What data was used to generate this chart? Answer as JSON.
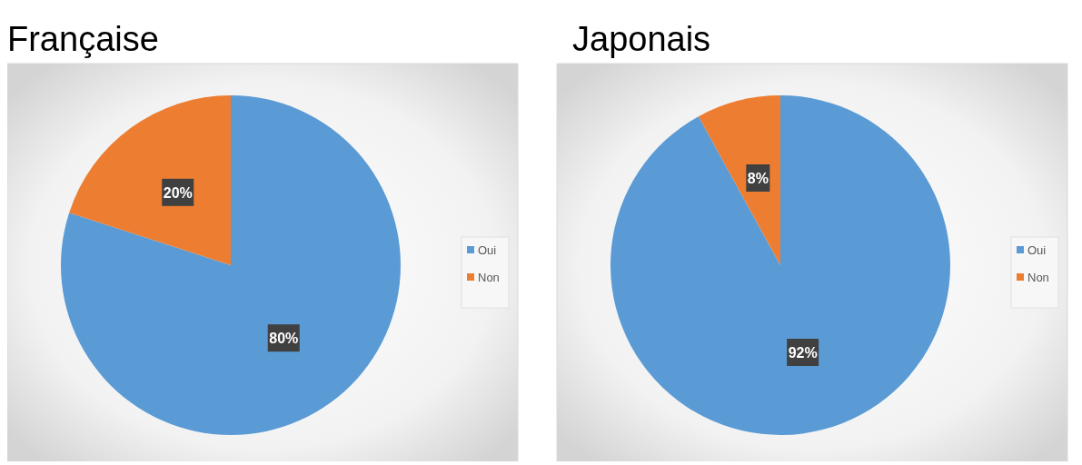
{
  "chart_data": [
    {
      "type": "pie",
      "title": "Française",
      "categories": [
        "Oui",
        "Non"
      ],
      "values": [
        80,
        20
      ],
      "colors": [
        "#5b9bd5",
        "#ed7d31"
      ],
      "value_labels": [
        "80%",
        "20%"
      ],
      "legend": "right"
    },
    {
      "type": "pie",
      "title": "Japonais",
      "categories": [
        "Oui",
        "Non"
      ],
      "values": [
        92,
        8
      ],
      "colors": [
        "#5b9bd5",
        "#ed7d31"
      ],
      "value_labels": [
        "92%",
        "8%"
      ],
      "legend": "right"
    }
  ]
}
